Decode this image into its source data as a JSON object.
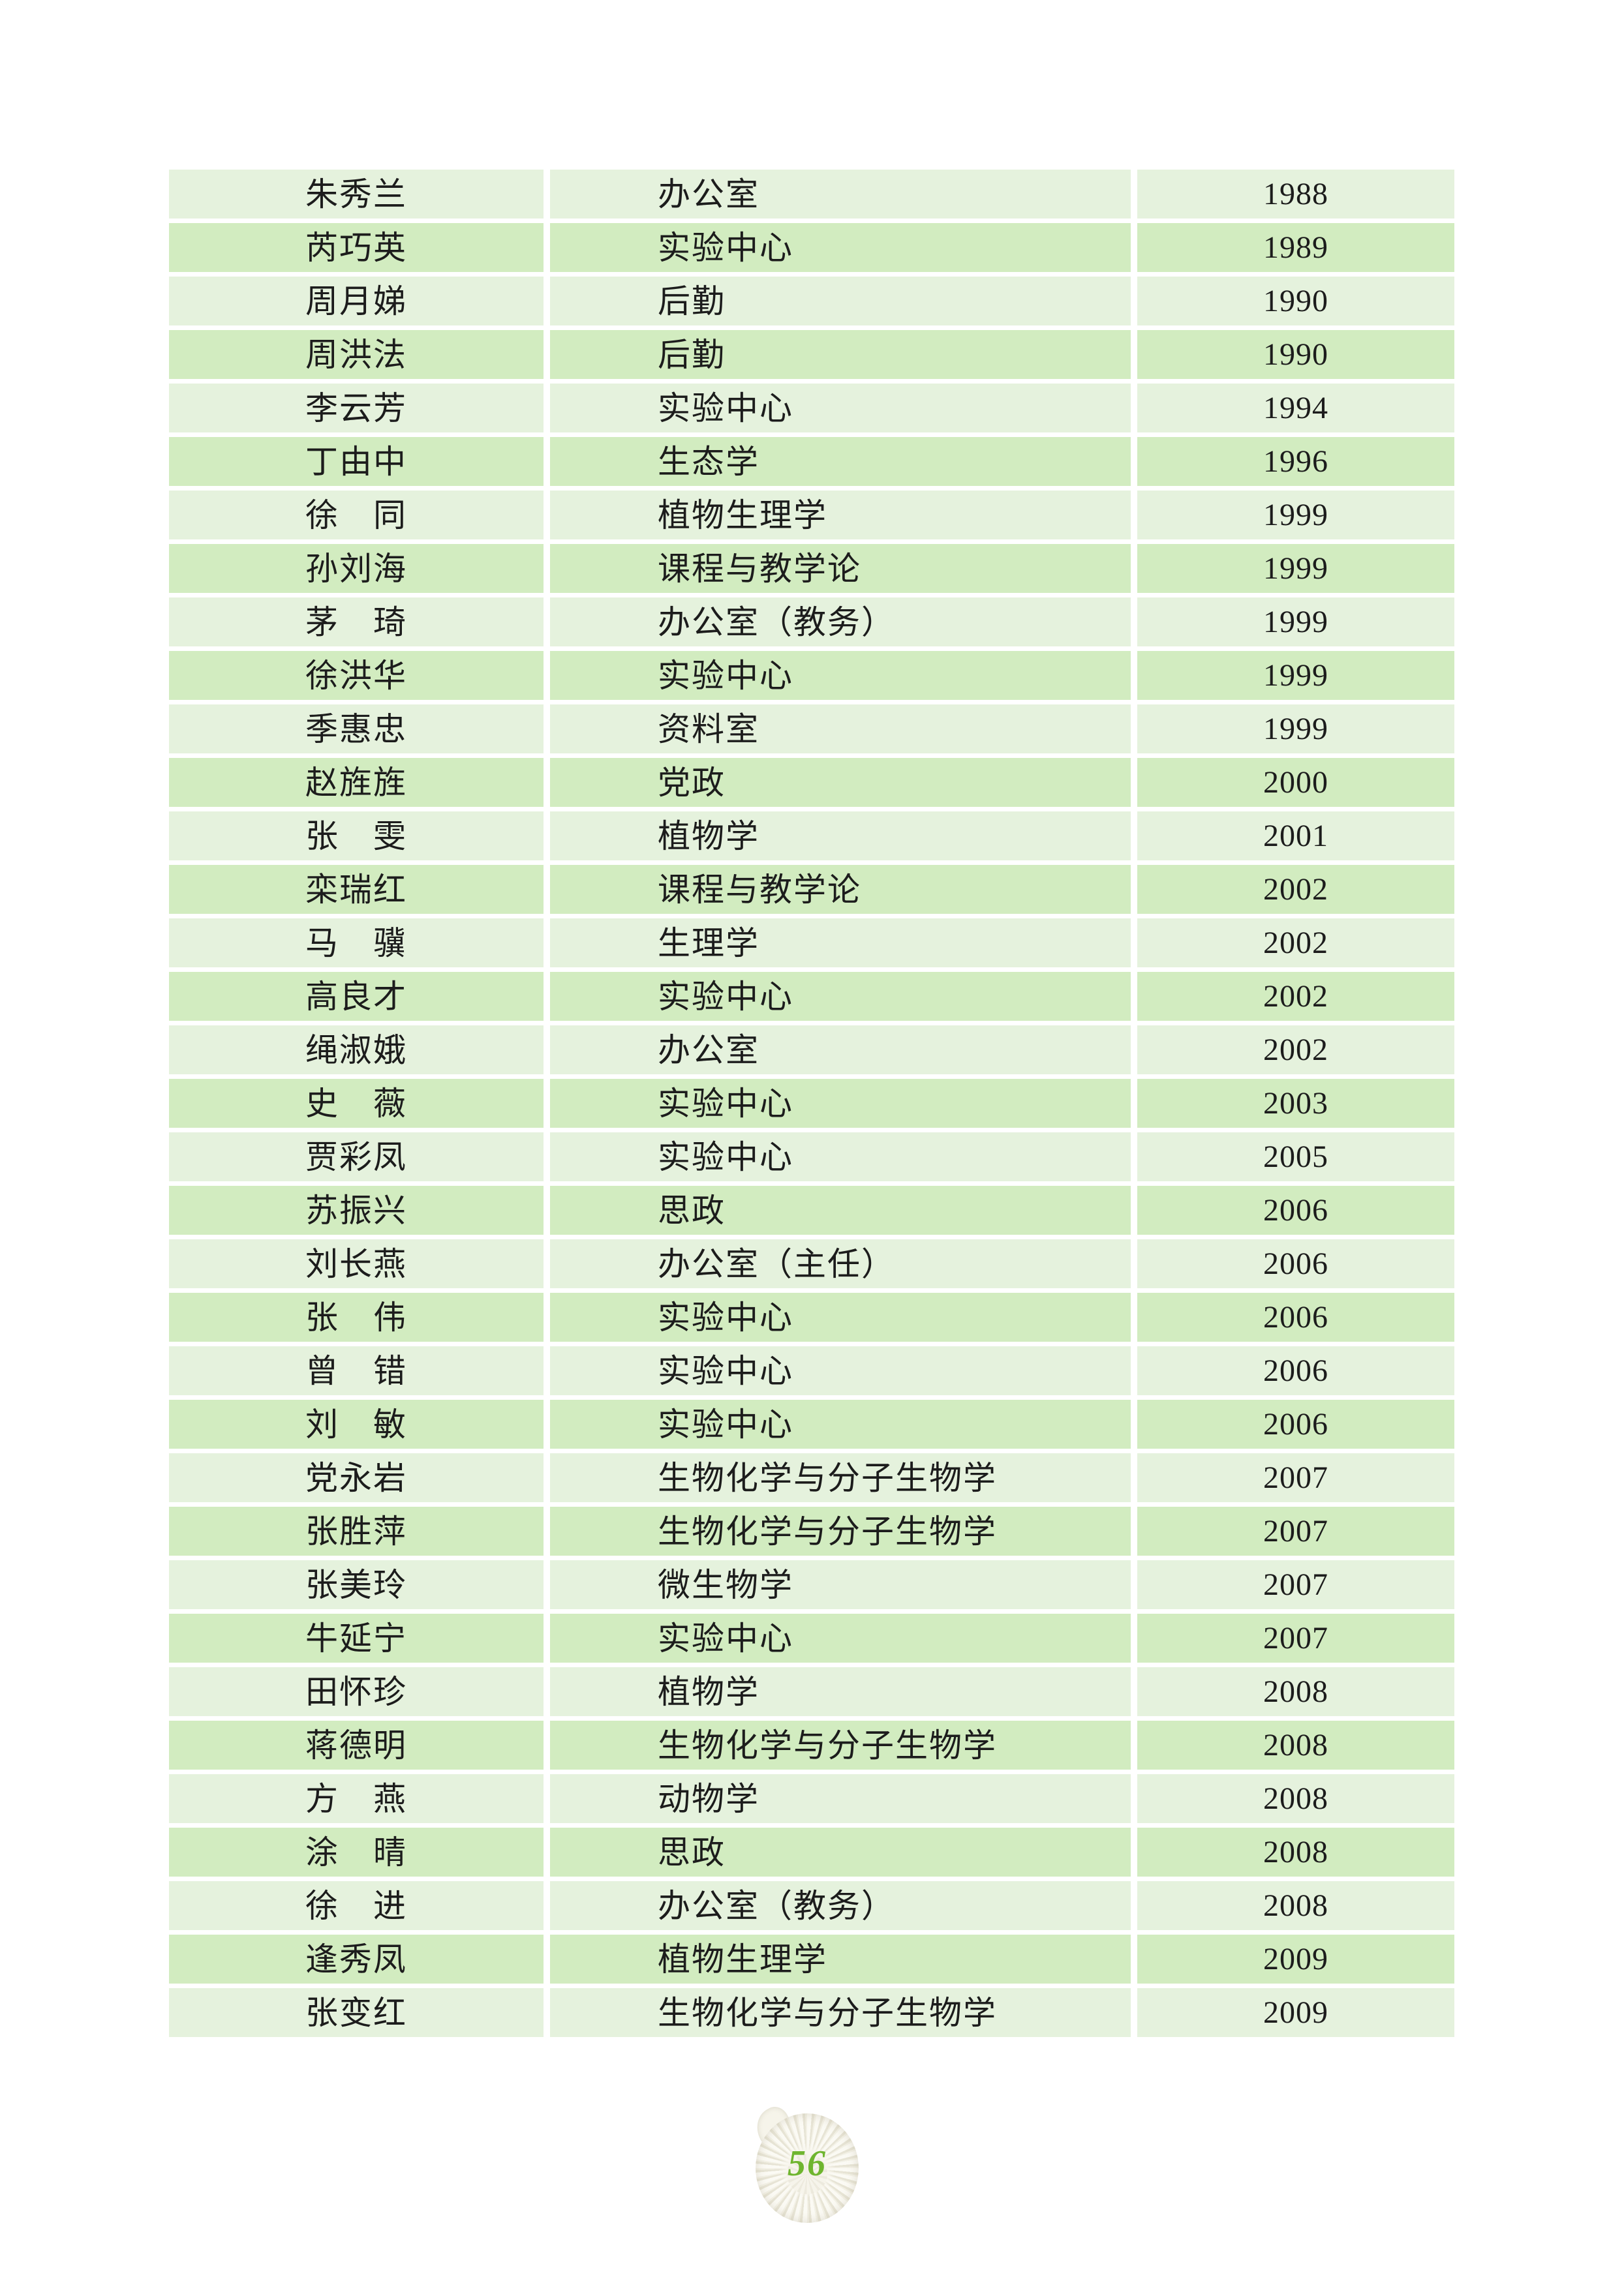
{
  "page": {
    "background": "#ffffff",
    "page_number": "56",
    "page_number_color": "#6fb52f"
  },
  "table": {
    "columns": [
      "name",
      "department",
      "year"
    ],
    "row_colors": {
      "odd": "#e5f2dd",
      "even": "#d2ecc0"
    },
    "rows": [
      {
        "name": "朱秀兰",
        "department": "办公室",
        "year": "1988"
      },
      {
        "name": "芮巧英",
        "department": "实验中心",
        "year": "1989"
      },
      {
        "name": "周月娣",
        "department": "后勤",
        "year": "1990"
      },
      {
        "name": "周洪法",
        "department": "后勤",
        "year": "1990"
      },
      {
        "name": "李云芳",
        "department": "实验中心",
        "year": "1994"
      },
      {
        "name": "丁由中",
        "department": "生态学",
        "year": "1996"
      },
      {
        "name": "徐　同",
        "department": "植物生理学",
        "year": "1999"
      },
      {
        "name": "孙刘海",
        "department": "课程与教学论",
        "year": "1999"
      },
      {
        "name": "茅　琦",
        "department": "办公室（教务）",
        "year": "1999"
      },
      {
        "name": "徐洪华",
        "department": "实验中心",
        "year": "1999"
      },
      {
        "name": "季惠忠",
        "department": "资料室",
        "year": "1999"
      },
      {
        "name": "赵旌旌",
        "department": "党政",
        "year": "2000"
      },
      {
        "name": "张　雯",
        "department": "植物学",
        "year": "2001"
      },
      {
        "name": "栾瑞红",
        "department": "课程与教学论",
        "year": "2002"
      },
      {
        "name": "马　骥",
        "department": "生理学",
        "year": "2002"
      },
      {
        "name": "高良才",
        "department": "实验中心",
        "year": "2002"
      },
      {
        "name": "绳淑娥",
        "department": "办公室",
        "year": "2002"
      },
      {
        "name": "史　薇",
        "department": "实验中心",
        "year": "2003"
      },
      {
        "name": "贾彩凤",
        "department": "实验中心",
        "year": "2005"
      },
      {
        "name": "苏振兴",
        "department": "思政",
        "year": "2006"
      },
      {
        "name": "刘长燕",
        "department": "办公室（主任）",
        "year": "2006"
      },
      {
        "name": "张　伟",
        "department": "实验中心",
        "year": "2006"
      },
      {
        "name": "曾　错",
        "department": "实验中心",
        "year": "2006"
      },
      {
        "name": "刘　敏",
        "department": "实验中心",
        "year": "2006"
      },
      {
        "name": "党永岩",
        "department": "生物化学与分子生物学",
        "year": "2007"
      },
      {
        "name": "张胜萍",
        "department": "生物化学与分子生物学",
        "year": "2007"
      },
      {
        "name": "张美玲",
        "department": "微生物学",
        "year": "2007"
      },
      {
        "name": "牛延宁",
        "department": "实验中心",
        "year": "2007"
      },
      {
        "name": "田怀珍",
        "department": "植物学",
        "year": "2008"
      },
      {
        "name": "蒋德明",
        "department": "生物化学与分子生物学",
        "year": "2008"
      },
      {
        "name": "方　燕",
        "department": "动物学",
        "year": "2008"
      },
      {
        "name": "涂　晴",
        "department": "思政",
        "year": "2008"
      },
      {
        "name": "徐　进",
        "department": "办公室（教务）",
        "year": "2008"
      },
      {
        "name": "逢秀凤",
        "department": "植物生理学",
        "year": "2009"
      },
      {
        "name": "张变红",
        "department": "生物化学与分子生物学",
        "year": "2009"
      }
    ]
  },
  "footer": {
    "shell_icon": "ammonite-shell",
    "page_number": "56"
  }
}
